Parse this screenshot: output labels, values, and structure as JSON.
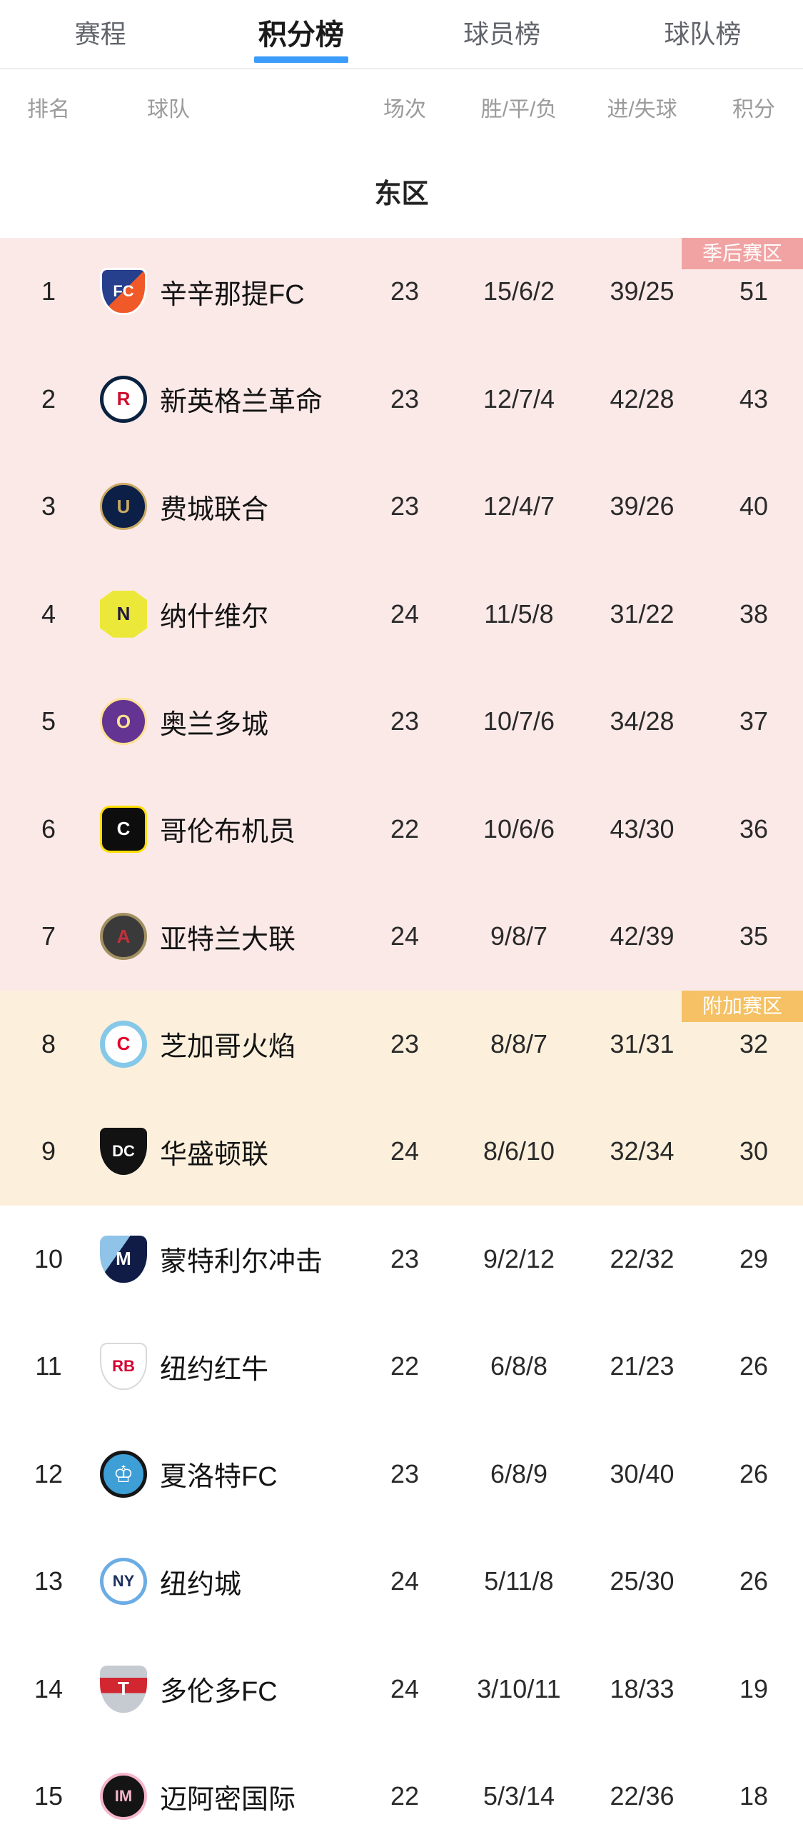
{
  "colors": {
    "accent_blue": "#3b9cfc",
    "playoff_bg": "#fbe9e8",
    "playoff_badge": "#f1a3a3",
    "playin_bg": "#fcf0dc",
    "playin_badge": "#f5c164"
  },
  "tabs": [
    {
      "label": "赛程",
      "active": false
    },
    {
      "label": "积分榜",
      "active": true
    },
    {
      "label": "球员榜",
      "active": false
    },
    {
      "label": "球队榜",
      "active": false
    }
  ],
  "columns": {
    "rank": "排名",
    "team": "球队",
    "matches": "场次",
    "wdl": "胜/平/负",
    "goals": "进/失球",
    "points": "积分"
  },
  "section_title": "东区",
  "zones": [
    {
      "badge": "季后赛区",
      "badge_style": "background:#f1a3a3",
      "section_style": "background:#fbe9e8"
    },
    {
      "badge": "附加赛区",
      "badge_style": "background:#f5c164",
      "section_style": "background:#fcf0dc"
    },
    {
      "badge": "",
      "badge_style": "",
      "section_style": "background:#ffffff"
    }
  ],
  "teams": [
    {
      "rank": "1",
      "name": "辛辛那提FC",
      "matches": "23",
      "wdl": "15/6/2",
      "goals": "39/25",
      "points": "51",
      "logo": {
        "text": "FC",
        "style": "background:linear-gradient(135deg,#26408e 50%,#f05a28 50%);color:#fff;border-radius:10px 10px 46% 46%/10px 10px 60% 60%;border:3px solid #fff;font-size:22px"
      }
    },
    {
      "rank": "2",
      "name": "新英格兰革命",
      "matches": "23",
      "wdl": "12/7/4",
      "goals": "42/28",
      "points": "43",
      "logo": {
        "text": "R",
        "style": "background:#fff;color:#ce0e2d;border:5px solid #0a2240"
      }
    },
    {
      "rank": "3",
      "name": "费城联合",
      "matches": "23",
      "wdl": "12/4/7",
      "goals": "39/26",
      "points": "40",
      "logo": {
        "text": "U",
        "style": "background:#0b1f47;color:#c9a961;border:3px solid #c9a961"
      }
    },
    {
      "rank": "4",
      "name": "纳什维尔",
      "matches": "24",
      "wdl": "11/5/8",
      "goals": "31/22",
      "points": "38",
      "logo": {
        "text": "N",
        "style": "background:#ece83a;color:#1f1646;border-radius:10px;clip-path:polygon(28% 0,72% 0,100% 20%,100% 80%,72% 100%,28% 100%,0 80%,0 20%)"
      }
    },
    {
      "rank": "5",
      "name": "奥兰多城",
      "matches": "23",
      "wdl": "10/7/6",
      "goals": "34/28",
      "points": "37",
      "logo": {
        "text": "O",
        "style": "background:#633492;color:#fde192;border:3px solid #fde192"
      }
    },
    {
      "rank": "6",
      "name": "哥伦布机员",
      "matches": "22",
      "wdl": "10/6/6",
      "goals": "43/30",
      "points": "36",
      "logo": {
        "text": "C",
        "style": "background:#0d0d0d;color:#fff;border:3px solid #fedd00;border-radius:14px"
      }
    },
    {
      "rank": "7",
      "name": "亚特兰大联",
      "matches": "24",
      "wdl": "9/8/7",
      "goals": "42/39",
      "points": "35",
      "logo": {
        "text": "A",
        "style": "background:#3a3a3a;color:#c4303c;border:4px solid #a29061"
      }
    },
    {
      "rank": "8",
      "name": "芝加哥火焰",
      "matches": "23",
      "wdl": "8/8/7",
      "goals": "31/31",
      "points": "32",
      "logo": {
        "text": "C",
        "style": "background:#fff;color:#e4002b;border:7px solid #86c8e8"
      }
    },
    {
      "rank": "9",
      "name": "华盛顿联",
      "matches": "24",
      "wdl": "8/6/10",
      "goals": "32/34",
      "points": "30",
      "logo": {
        "text": "DC",
        "style": "background:#121212;color:#fff;border-radius:8px 8px 50% 50%/8px 8px 62% 62%;font-size:22px"
      }
    },
    {
      "rank": "10",
      "name": "蒙特利尔冲击",
      "matches": "23",
      "wdl": "9/2/12",
      "goals": "22/32",
      "points": "29",
      "logo": {
        "text": "M",
        "style": "background:linear-gradient(125deg,#8fc3e8 38%,#101c45 38%);color:#fff;border-radius:10px 10px 48% 48%/10px 10px 60% 60%"
      }
    },
    {
      "rank": "11",
      "name": "纽约红牛",
      "matches": "22",
      "wdl": "6/8/8",
      "goals": "21/23",
      "points": "26",
      "logo": {
        "text": "RB",
        "style": "background:#fff;color:#d50032;border:2px solid #d9d9d9;border-radius:10px 10px 48% 48%/10px 10px 60% 60%;font-size:22px"
      }
    },
    {
      "rank": "12",
      "name": "夏洛特FC",
      "matches": "23",
      "wdl": "6/8/9",
      "goals": "30/40",
      "points": "26",
      "logo": {
        "text": "♔",
        "style": "background:#3d9fd6;color:#fff;border:5px solid #151515;font-size:32px"
      }
    },
    {
      "rank": "13",
      "name": "纽约城",
      "matches": "24",
      "wdl": "5/11/8",
      "goals": "25/30",
      "points": "26",
      "logo": {
        "text": "NY",
        "style": "background:#fff;color:#1d2f5e;border:5px solid #6cace4;font-size:22px"
      }
    },
    {
      "rank": "14",
      "name": "多伦多FC",
      "matches": "24",
      "wdl": "3/10/11",
      "goals": "18/33",
      "points": "19",
      "logo": {
        "text": "T",
        "style": "background:linear-gradient(180deg,#c6cad1 0 26%,#d22630 26% 58%,#c6cad1 58%);color:#fff;border-radius:10px 10px 48% 48%/10px 10px 62% 62%"
      }
    },
    {
      "rank": "15",
      "name": "迈阿密国际",
      "matches": "22",
      "wdl": "5/3/14",
      "goals": "22/36",
      "points": "18",
      "logo": {
        "text": "IM",
        "style": "background:#141414;color:#f5b6cd;border:4px solid #f5b6cd;font-size:22px"
      }
    }
  ]
}
